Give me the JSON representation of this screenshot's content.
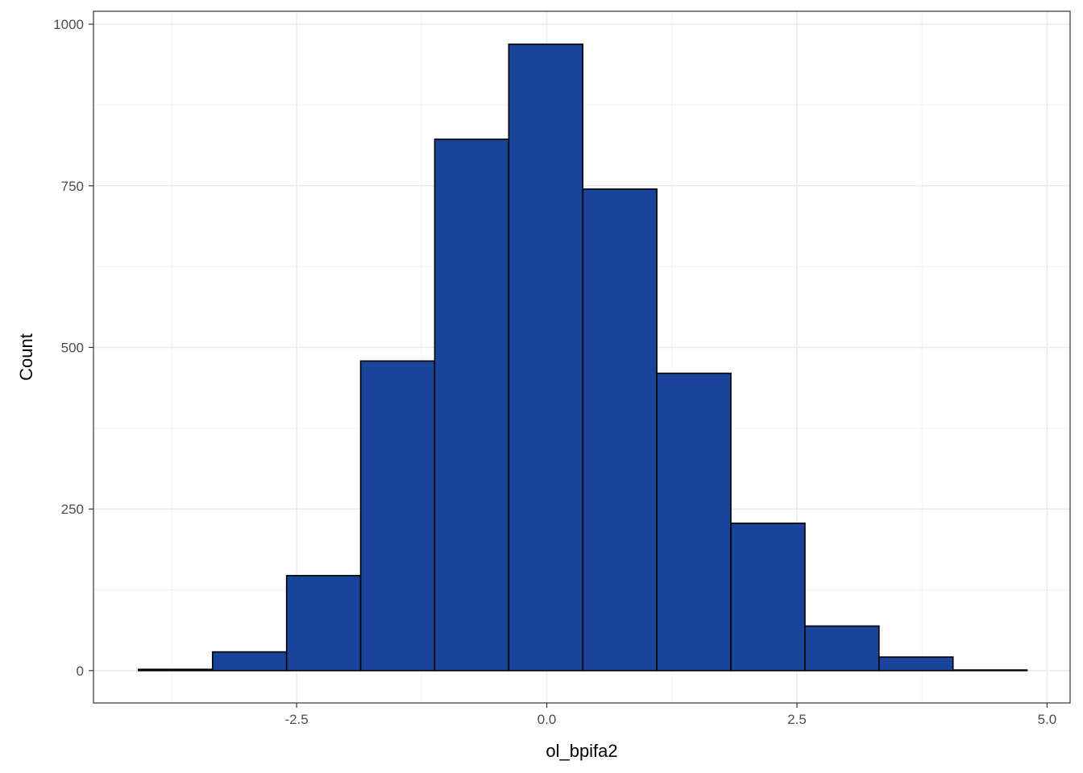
{
  "chart_data": {
    "type": "bar",
    "subtype": "histogram",
    "xlabel": "ol_bpifa2",
    "ylabel": "Count",
    "xlim": [
      -4.53,
      5.23
    ],
    "ylim": [
      -50,
      1020
    ],
    "x_ticks": [
      -2.5,
      0.0,
      2.5,
      5.0
    ],
    "x_tick_labels": [
      "-2.5",
      "0.0",
      "2.5",
      "5.0"
    ],
    "y_ticks": [
      0,
      250,
      500,
      750,
      1000
    ],
    "y_tick_labels": [
      "0",
      "250",
      "500",
      "750",
      "1000"
    ],
    "bins": [
      {
        "x0": -4.08,
        "x1": -3.34,
        "count": 2
      },
      {
        "x0": -3.34,
        "x1": -2.6,
        "count": 29
      },
      {
        "x0": -2.6,
        "x1": -1.86,
        "count": 147
      },
      {
        "x0": -1.86,
        "x1": -1.12,
        "count": 479
      },
      {
        "x0": -1.12,
        "x1": -0.38,
        "count": 822
      },
      {
        "x0": -0.38,
        "x1": 0.36,
        "count": 969
      },
      {
        "x0": 0.36,
        "x1": 1.1,
        "count": 745
      },
      {
        "x0": 1.1,
        "x1": 1.84,
        "count": 460
      },
      {
        "x0": 1.84,
        "x1": 2.58,
        "count": 228
      },
      {
        "x0": 2.58,
        "x1": 3.32,
        "count": 69
      },
      {
        "x0": 3.32,
        "x1": 4.06,
        "count": 21
      },
      {
        "x0": 4.06,
        "x1": 4.8,
        "count": 1
      }
    ],
    "fill_color": "#1A4499",
    "outline_color": "#000000",
    "grid": true,
    "theme": "bw"
  }
}
